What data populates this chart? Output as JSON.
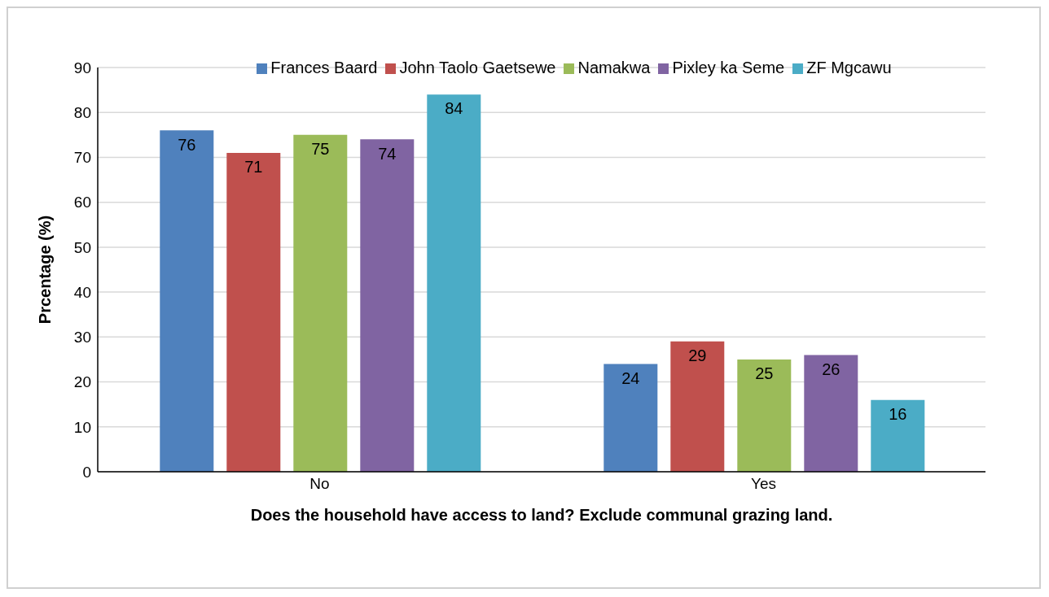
{
  "chart_data": {
    "type": "bar",
    "xlabel": "Does the household have access to land? Exclude communal grazing land.",
    "ylabel": "Prcentage (%)",
    "categories": [
      "No",
      "Yes"
    ],
    "series": [
      {
        "name": "Frances Baard",
        "color": "#4f81bd",
        "values": [
          76,
          24
        ]
      },
      {
        "name": "John Taolo Gaetsewe",
        "color": "#c0504d",
        "values": [
          71,
          29
        ]
      },
      {
        "name": "Namakwa",
        "color": "#9bbb59",
        "values": [
          75,
          25
        ]
      },
      {
        "name": "Pixley ka Seme",
        "color": "#8064a2",
        "values": [
          74,
          26
        ]
      },
      {
        "name": "ZF Mgcawu",
        "color": "#4bacc6",
        "values": [
          84,
          16
        ]
      }
    ],
    "ylim": [
      0,
      90
    ],
    "yticks": [
      0,
      10,
      20,
      30,
      40,
      50,
      60,
      70,
      80,
      90
    ],
    "grid": "y",
    "legend": "top",
    "data_labels": true
  }
}
